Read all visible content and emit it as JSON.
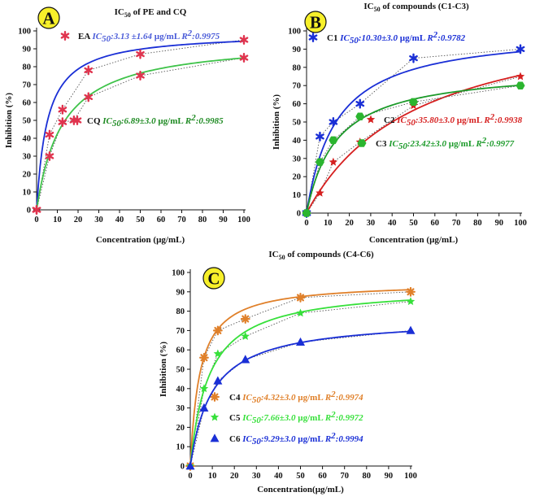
{
  "chart_data": [
    {
      "panel": "A",
      "type": "scatter",
      "title_main": "IC",
      "title_sub": "50",
      "title_rest": " of  PE and CQ",
      "xlabel": "Concentration (µg/mL)",
      "ylabel": "Inhibition (%)",
      "xlim": [
        0,
        100
      ],
      "ylim": [
        0,
        100
      ],
      "x_ticks": [
        "0",
        "10",
        "20",
        "30",
        "40",
        "50",
        "60",
        "70",
        "80",
        "90",
        "100"
      ],
      "y_ticks": [
        "0",
        "10",
        "20",
        "30",
        "40",
        "50",
        "60",
        "70",
        "80",
        "90",
        "100"
      ],
      "series": [
        {
          "name": "EA",
          "color": "#1a2fd6",
          "marker_color": "#e0344e",
          "marker": "star6",
          "x": [
            0,
            6.25,
            12.5,
            25,
            50,
            100
          ],
          "y": [
            0,
            42,
            56,
            78,
            87,
            95
          ],
          "fit_max": 99.1,
          "fit_k": 5.2,
          "note_ic": "IC",
          "note_sub": "50",
          "note_val": ":3.13 ±1.64",
          "note_unit": " µg/mL",
          "note_r2": "R",
          "note_r2val": ":0.9975",
          "note_color": "#4a5bd8"
        },
        {
          "name": "CQ",
          "color": "#3fc34a",
          "marker_color": "#e0344e",
          "marker": "star6",
          "x": [
            0,
            6.25,
            12.5,
            18,
            25,
            50,
            100
          ],
          "y": [
            0,
            30,
            49,
            50,
            63,
            75,
            85
          ],
          "fit_max": 95.5,
          "fit_k": 12.5,
          "note_ic": "IC",
          "note_sub": "50",
          "note_val": ":6.89±3.0",
          "note_unit": " µg/mL",
          "note_r2": "R",
          "note_r2val": ":0.9985",
          "note_color": "#1e8a22"
        }
      ]
    },
    {
      "panel": "B",
      "type": "scatter",
      "title_main": "IC",
      "title_sub": "50",
      "title_rest": " of compounds (C1-C3)",
      "xlabel": "Concentration (µg/mL)",
      "ylabel": "Inhibition (%)",
      "xlim": [
        0,
        100
      ],
      "ylim": [
        0,
        100
      ],
      "x_ticks": [
        "0",
        "10",
        "20",
        "30",
        "40",
        "50",
        "60",
        "70",
        "80",
        "90",
        "100"
      ],
      "y_ticks": [
        "0",
        "10",
        "20",
        "30",
        "40",
        "50",
        "60",
        "70",
        "80",
        "90",
        "100"
      ],
      "series": [
        {
          "name": "C1",
          "color": "#1a2fd6",
          "marker_color": "#1a2fd6",
          "marker": "star6",
          "x": [
            0,
            6.25,
            12.5,
            25,
            50,
            100
          ],
          "y": [
            0,
            42,
            50,
            60,
            85,
            90
          ],
          "fit_max": 101,
          "fit_k": 14,
          "note_ic": "IC",
          "note_sub": "50",
          "note_val": ":10.30±3.0",
          "note_unit": " µg/mL",
          "note_r2": "R",
          "note_r2val": ":0.9782",
          "note_color": "#1a2fd6"
        },
        {
          "name": "C2",
          "color": "#d62020",
          "marker_color": "#d62020",
          "marker": "star5",
          "x": [
            0,
            6.25,
            12.5,
            25,
            50,
            100
          ],
          "y": [
            0,
            11,
            28,
            39,
            59,
            75
          ],
          "fit_max": 115,
          "fit_k": 52,
          "note_ic": "IC",
          "note_sub": "50",
          "note_val": ":35.80±3.0",
          "note_unit": " µg/mL",
          "note_r2": "R",
          "note_r2val": ":0.9938",
          "note_color": "#d62020"
        },
        {
          "name": "C3",
          "color": "#1c9a2a",
          "marker_color": "#2bb52f",
          "marker": "hexagon",
          "x": [
            0,
            6.25,
            12.5,
            25,
            50,
            100
          ],
          "y": [
            0,
            28,
            40,
            53,
            61,
            70
          ],
          "fit_max": 80,
          "fit_k": 14,
          "note_ic": "IC",
          "note_sub": "50",
          "note_val": ":23.42±3.0",
          "note_unit": " µg/mL",
          "note_r2": "R",
          "note_r2val": ":0.9977",
          "note_color": "#1c9a2a"
        }
      ]
    },
    {
      "panel": "C",
      "type": "scatter",
      "title_main": "IC",
      "title_sub": "50",
      "title_rest": " of compounds (C4-C6)",
      "xlabel": "Concentration(µg/mL)",
      "ylabel": "Inhibition (%)",
      "xlim": [
        0,
        100
      ],
      "ylim": [
        0,
        100
      ],
      "x_ticks": [
        "0",
        "10",
        "20",
        "30",
        "40",
        "50",
        "60",
        "70",
        "80",
        "90",
        "100"
      ],
      "y_ticks": [
        "0",
        "10",
        "20",
        "30",
        "40",
        "50",
        "60",
        "70",
        "80",
        "90",
        "100"
      ],
      "series": [
        {
          "name": "C4",
          "color": "#e0802a",
          "marker_color": "#e0802a",
          "marker": "asterisk",
          "x": [
            0,
            6.25,
            12.5,
            25,
            50,
            100
          ],
          "y": [
            0,
            56,
            70,
            76,
            87,
            90
          ],
          "fit_max": 95,
          "fit_k": 4.3,
          "note_ic": "IC",
          "note_sub": "50",
          "note_val": ":4.32±3.0",
          "note_unit": " µg/mL",
          "note_r2": "R",
          "note_r2val": ":0.9974",
          "note_color": "#e0802a"
        },
        {
          "name": "C5",
          "color": "#36e03a",
          "marker_color": "#36e03a",
          "marker": "star5",
          "x": [
            0,
            6.25,
            12.5,
            25,
            50,
            100
          ],
          "y": [
            0,
            40,
            58,
            67,
            79,
            85
          ],
          "fit_max": 93,
          "fit_k": 8.5,
          "note_ic": "IC",
          "note_sub": "50",
          "note_val": ":7.66±3.0",
          "note_unit": " µg/mL",
          "note_r2": "R",
          "note_r2val": ":0.9972",
          "note_color": "#36e03a"
        },
        {
          "name": "C6",
          "color": "#1a2fd6",
          "marker_color": "#1a2fd6",
          "marker": "triangle",
          "x": [
            0,
            6.25,
            12.5,
            25,
            50,
            100
          ],
          "y": [
            0,
            30,
            44,
            55,
            64,
            70
          ],
          "fit_max": 76.5,
          "fit_k": 10,
          "note_ic": "IC",
          "note_sub": "50",
          "note_val": ":9.29±3.0",
          "note_unit": " µg/mL",
          "note_r2": "R",
          "note_r2val": ":0.9994",
          "note_color": "#1a2fd6"
        }
      ]
    }
  ]
}
